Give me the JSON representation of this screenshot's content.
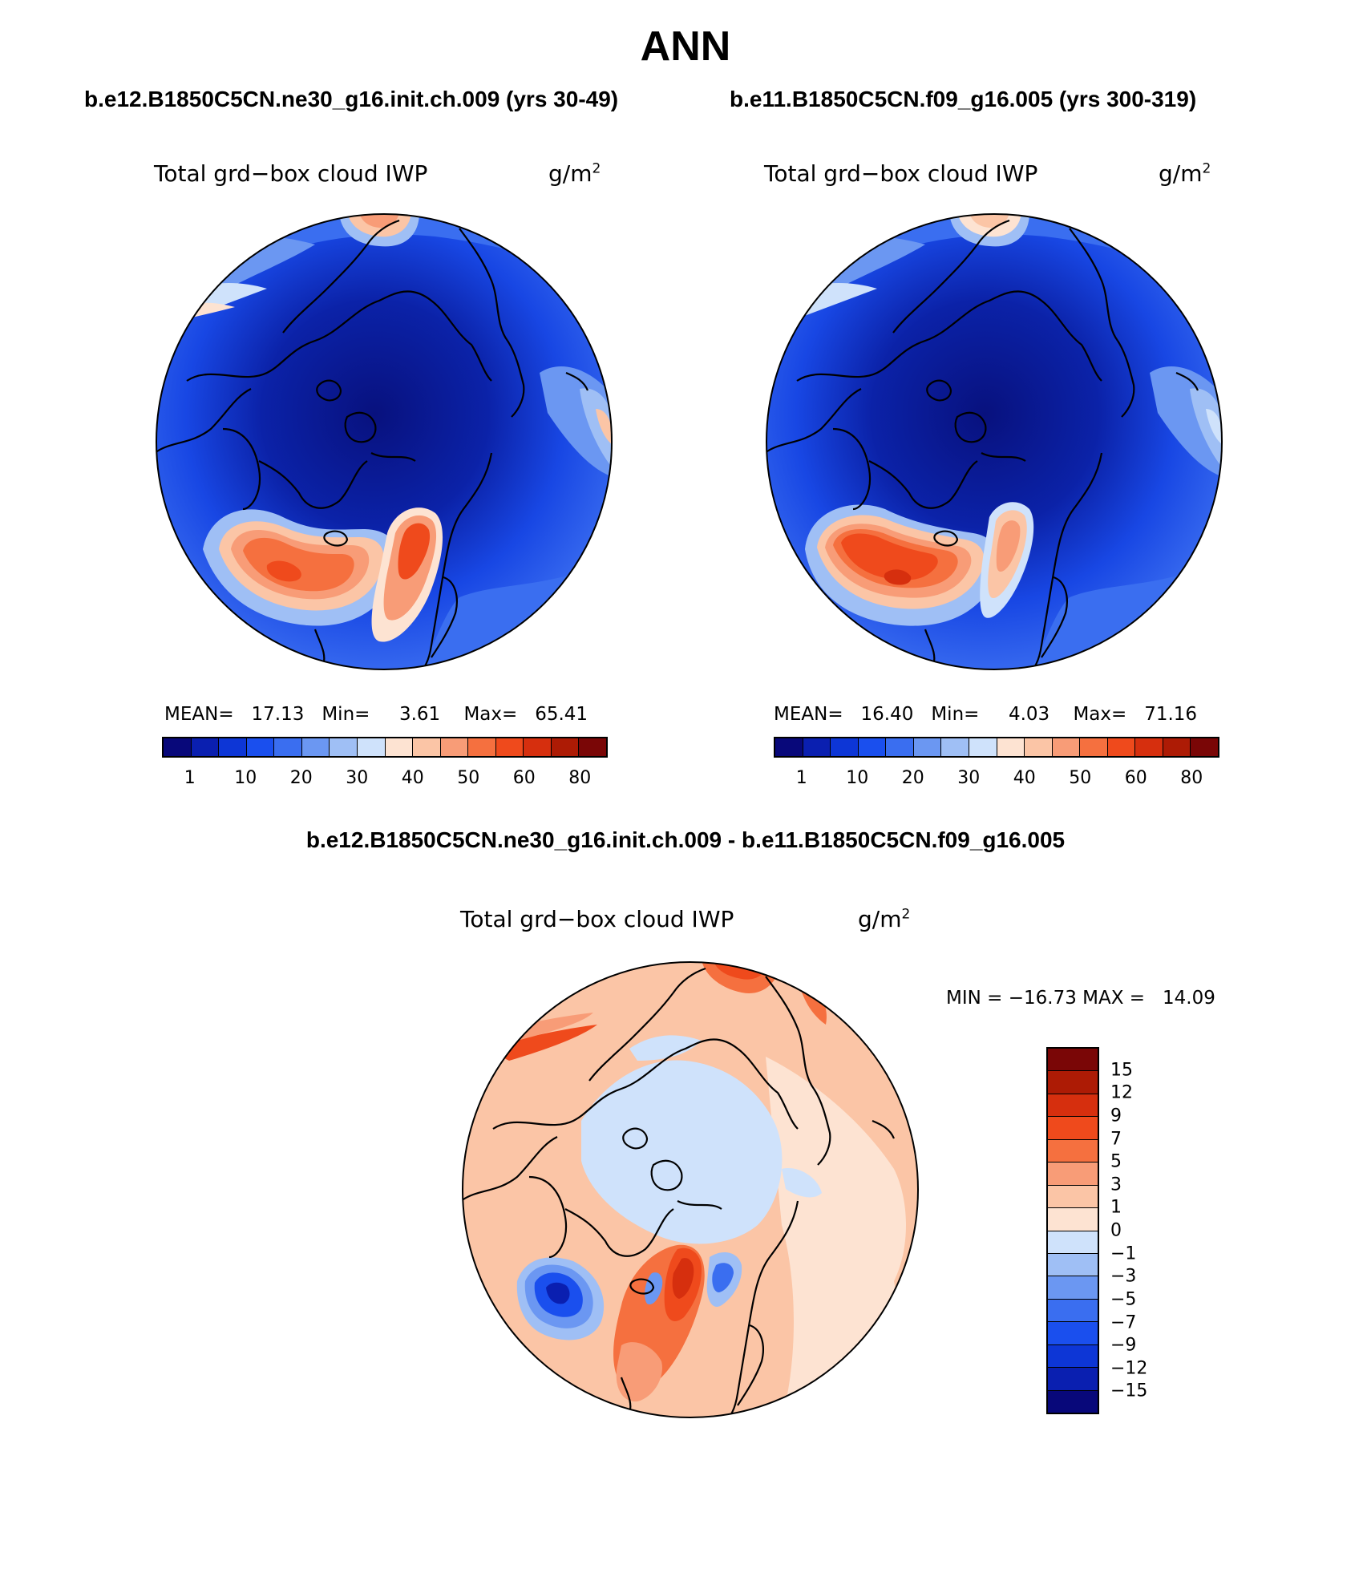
{
  "title": "ANN",
  "panels": [
    {
      "case": "b.e12.B1850C5CN.ne30_g16.init.ch.009 (yrs 30-49)",
      "variable": "Total grd−box cloud IWP",
      "units": "g/m",
      "units_exp": "2",
      "mean_label": "MEAN=",
      "mean": "17.13",
      "min_label": "Min=",
      "min": "3.61",
      "max_label": "Max=",
      "max": "65.41"
    },
    {
      "case": "b.e11.B1850C5CN.f09_g16.005 (yrs 300-319)",
      "variable": "Total grd−box cloud IWP",
      "units": "g/m",
      "units_exp": "2",
      "mean_label": "MEAN=",
      "mean": "16.40",
      "min_label": "Min=",
      "min": "4.03",
      "max_label": "Max=",
      "max": "71.16"
    }
  ],
  "abs_colorbar": {
    "ticks": [
      "1",
      "10",
      "20",
      "30",
      "40",
      "50",
      "60",
      "80"
    ],
    "colors": [
      "#08087a",
      "#0a1fb0",
      "#0d36d6",
      "#1a4fee",
      "#3a6ef0",
      "#6b97f2",
      "#9fbff5",
      "#cfe2fb",
      "#fde3d2",
      "#fbc5a6",
      "#f89c77",
      "#f5703f",
      "#ef4a1c",
      "#d62f0e",
      "#ad1b05",
      "#7a0606"
    ]
  },
  "diff": {
    "title": "b.e12.B1850C5CN.ne30_g16.init.ch.009 - b.e11.B1850C5CN.f09_g16.005",
    "variable": "Total grd−box cloud IWP",
    "units": "g/m",
    "units_exp": "2",
    "minmax": "MIN = −16.73 MAX =   14.09",
    "colorbar": {
      "ticks": [
        "15",
        "12",
        "9",
        "7",
        "5",
        "3",
        "1",
        "0",
        "−1",
        "−3",
        "−5",
        "−7",
        "−9",
        "−12",
        "−15"
      ],
      "colors": [
        "#7a0606",
        "#ad1b05",
        "#d62f0e",
        "#ef4a1c",
        "#f5703f",
        "#f89c77",
        "#fbc5a6",
        "#fde3d2",
        "#cfe2fb",
        "#9fbff5",
        "#6b97f2",
        "#3a6ef0",
        "#1a4fee",
        "#0d36d6",
        "#0a1fb0",
        "#08087a"
      ]
    }
  }
}
